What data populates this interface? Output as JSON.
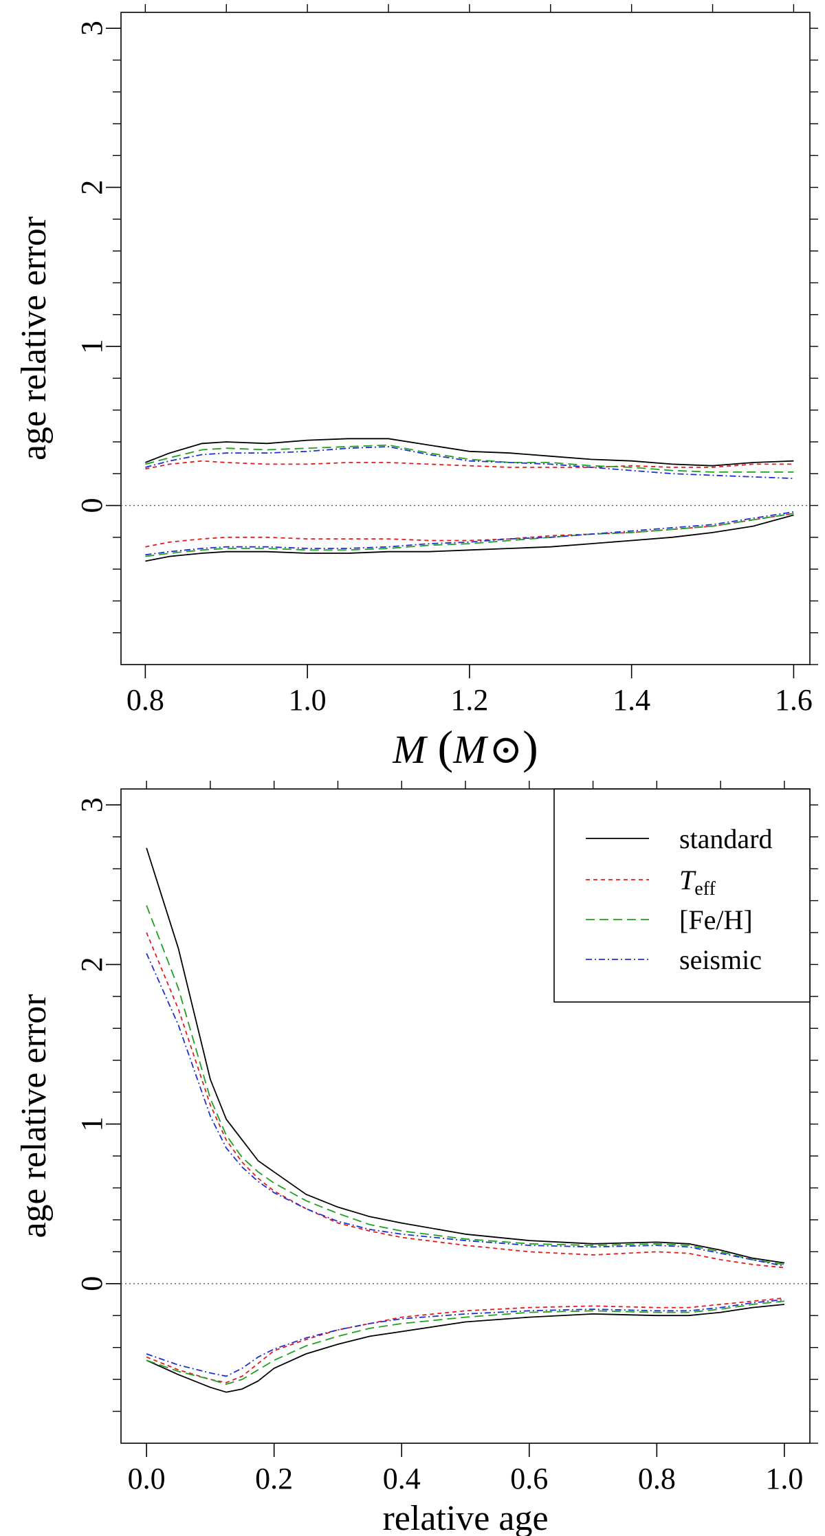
{
  "figure": {
    "panels": 2
  },
  "colors": {
    "standard": "#000000",
    "teff": "#e31a1c",
    "feh": "#1fa01f",
    "seismic": "#1f2fd6",
    "axis": "#000000",
    "zero_line": "#555555"
  },
  "legend": {
    "entries": [
      {
        "key": "standard",
        "label": "standard",
        "sub": ""
      },
      {
        "key": "teff",
        "label": "T",
        "sub": "eff"
      },
      {
        "key": "feh",
        "label": "[Fe/H]",
        "sub": ""
      },
      {
        "key": "seismic",
        "label": "seismic",
        "sub": ""
      }
    ],
    "placement": "top-right of bottom panel"
  },
  "chart_data": [
    {
      "type": "line",
      "title": "",
      "xlabel": "M (M⊙)",
      "xlabel_main": "M",
      "xlabel_unit": "M",
      "ylabel": "age relative error",
      "xlim": [
        0.77,
        1.62
      ],
      "ylim": [
        -1.0,
        3.1
      ],
      "xticks": [
        0.8,
        1.0,
        1.2,
        1.4,
        1.6
      ],
      "xtick_labels": [
        "0.8",
        "1.0",
        "1.2",
        "1.4",
        "1.6"
      ],
      "yticks": [
        0,
        1,
        2,
        3
      ],
      "ytick_labels": [
        "0",
        "1",
        "2",
        "3"
      ],
      "zero_line": true,
      "x": [
        0.8,
        0.83,
        0.87,
        0.9,
        0.95,
        1.0,
        1.05,
        1.1,
        1.15,
        1.2,
        1.25,
        1.3,
        1.35,
        1.4,
        1.45,
        1.5,
        1.55,
        1.6
      ],
      "series": [
        {
          "name": "standard upper",
          "key": "standard",
          "dash": "solid",
          "values": [
            0.27,
            0.33,
            0.39,
            0.4,
            0.39,
            0.41,
            0.42,
            0.42,
            0.38,
            0.34,
            0.33,
            0.31,
            0.29,
            0.28,
            0.26,
            0.25,
            0.27,
            0.28
          ]
        },
        {
          "name": "T_eff upper",
          "key": "teff",
          "dash": "dotted",
          "values": [
            0.23,
            0.26,
            0.28,
            0.27,
            0.26,
            0.26,
            0.27,
            0.27,
            0.26,
            0.25,
            0.24,
            0.24,
            0.24,
            0.25,
            0.24,
            0.24,
            0.26,
            0.26
          ]
        },
        {
          "name": "[Fe/H] upper",
          "key": "feh",
          "dash": "dashed",
          "values": [
            0.26,
            0.3,
            0.35,
            0.36,
            0.35,
            0.36,
            0.37,
            0.38,
            0.33,
            0.29,
            0.27,
            0.27,
            0.25,
            0.24,
            0.22,
            0.21,
            0.21,
            0.21
          ]
        },
        {
          "name": "seismic upper",
          "key": "seismic",
          "dash": "dashdot",
          "values": [
            0.24,
            0.28,
            0.32,
            0.33,
            0.33,
            0.34,
            0.36,
            0.37,
            0.32,
            0.28,
            0.27,
            0.26,
            0.24,
            0.22,
            0.2,
            0.19,
            0.18,
            0.17
          ]
        },
        {
          "name": "standard lower",
          "key": "standard",
          "dash": "solid",
          "values": [
            -0.35,
            -0.32,
            -0.3,
            -0.29,
            -0.29,
            -0.3,
            -0.3,
            -0.29,
            -0.29,
            -0.28,
            -0.27,
            -0.26,
            -0.24,
            -0.22,
            -0.2,
            -0.17,
            -0.13,
            -0.06
          ]
        },
        {
          "name": "T_eff lower",
          "key": "teff",
          "dash": "dotted",
          "values": [
            -0.26,
            -0.23,
            -0.21,
            -0.2,
            -0.2,
            -0.21,
            -0.21,
            -0.21,
            -0.22,
            -0.22,
            -0.21,
            -0.19,
            -0.18,
            -0.17,
            -0.15,
            -0.13,
            -0.09,
            -0.05
          ]
        },
        {
          "name": "[Fe/H] lower",
          "key": "feh",
          "dash": "dashed",
          "values": [
            -0.32,
            -0.3,
            -0.28,
            -0.27,
            -0.27,
            -0.28,
            -0.28,
            -0.27,
            -0.25,
            -0.24,
            -0.22,
            -0.2,
            -0.18,
            -0.17,
            -0.15,
            -0.13,
            -0.09,
            -0.05
          ]
        },
        {
          "name": "seismic lower",
          "key": "seismic",
          "dash": "dashdot",
          "values": [
            -0.31,
            -0.29,
            -0.27,
            -0.26,
            -0.26,
            -0.27,
            -0.27,
            -0.26,
            -0.24,
            -0.23,
            -0.21,
            -0.2,
            -0.18,
            -0.16,
            -0.14,
            -0.12,
            -0.08,
            -0.04
          ]
        }
      ]
    },
    {
      "type": "line",
      "title": "",
      "xlabel": "relative age",
      "ylabel": "age relative error",
      "xlim": [
        -0.04,
        1.04
      ],
      "ylim": [
        -1.0,
        3.1
      ],
      "xticks": [
        0.0,
        0.2,
        0.4,
        0.6,
        0.8,
        1.0
      ],
      "xtick_labels": [
        "0.0",
        "0.2",
        "0.4",
        "0.6",
        "0.8",
        "1.0"
      ],
      "yticks": [
        0,
        1,
        2,
        3
      ],
      "ytick_labels": [
        "0",
        "1",
        "2",
        "3"
      ],
      "zero_line": true,
      "x": [
        0.0,
        0.05,
        0.1,
        0.125,
        0.15,
        0.175,
        0.2,
        0.25,
        0.3,
        0.35,
        0.4,
        0.5,
        0.6,
        0.7,
        0.8,
        0.85,
        0.9,
        0.95,
        1.0
      ],
      "series": [
        {
          "name": "standard upper",
          "key": "standard",
          "dash": "solid",
          "values": [
            2.73,
            2.1,
            1.28,
            1.03,
            0.9,
            0.77,
            0.7,
            0.56,
            0.48,
            0.42,
            0.38,
            0.31,
            0.27,
            0.25,
            0.26,
            0.25,
            0.21,
            0.16,
            0.13
          ]
        },
        {
          "name": "T_eff upper",
          "key": "teff",
          "dash": "dotted",
          "values": [
            2.2,
            1.72,
            1.12,
            0.9,
            0.76,
            0.66,
            0.58,
            0.47,
            0.38,
            0.33,
            0.29,
            0.24,
            0.2,
            0.18,
            0.2,
            0.19,
            0.15,
            0.12,
            0.1
          ]
        },
        {
          "name": "[Fe/H] upper",
          "key": "feh",
          "dash": "dashed",
          "values": [
            2.37,
            1.85,
            1.16,
            0.93,
            0.79,
            0.7,
            0.63,
            0.52,
            0.44,
            0.37,
            0.33,
            0.28,
            0.25,
            0.24,
            0.25,
            0.24,
            0.2,
            0.15,
            0.12
          ]
        },
        {
          "name": "seismic upper",
          "key": "seismic",
          "dash": "dashdot",
          "values": [
            2.07,
            1.62,
            1.05,
            0.85,
            0.73,
            0.64,
            0.57,
            0.47,
            0.39,
            0.34,
            0.31,
            0.27,
            0.24,
            0.23,
            0.24,
            0.23,
            0.19,
            0.15,
            0.11
          ]
        },
        {
          "name": "standard lower",
          "key": "standard",
          "dash": "solid",
          "values": [
            -0.48,
            -0.57,
            -0.65,
            -0.68,
            -0.66,
            -0.61,
            -0.53,
            -0.44,
            -0.38,
            -0.33,
            -0.3,
            -0.24,
            -0.21,
            -0.19,
            -0.2,
            -0.2,
            -0.18,
            -0.15,
            -0.13
          ]
        },
        {
          "name": "T_eff lower",
          "key": "teff",
          "dash": "dotted",
          "values": [
            -0.46,
            -0.54,
            -0.6,
            -0.62,
            -0.58,
            -0.5,
            -0.42,
            -0.35,
            -0.29,
            -0.25,
            -0.21,
            -0.17,
            -0.15,
            -0.14,
            -0.15,
            -0.15,
            -0.13,
            -0.11,
            -0.09
          ]
        },
        {
          "name": "[Fe/H] lower",
          "key": "feh",
          "dash": "dashed",
          "values": [
            -0.48,
            -0.55,
            -0.6,
            -0.63,
            -0.6,
            -0.54,
            -0.48,
            -0.39,
            -0.33,
            -0.28,
            -0.25,
            -0.21,
            -0.18,
            -0.17,
            -0.18,
            -0.18,
            -0.16,
            -0.13,
            -0.11
          ]
        },
        {
          "name": "seismic lower",
          "key": "seismic",
          "dash": "dashdot",
          "values": [
            -0.44,
            -0.51,
            -0.56,
            -0.58,
            -0.53,
            -0.46,
            -0.41,
            -0.34,
            -0.29,
            -0.25,
            -0.22,
            -0.19,
            -0.17,
            -0.16,
            -0.17,
            -0.17,
            -0.15,
            -0.12,
            -0.1
          ]
        }
      ]
    }
  ]
}
